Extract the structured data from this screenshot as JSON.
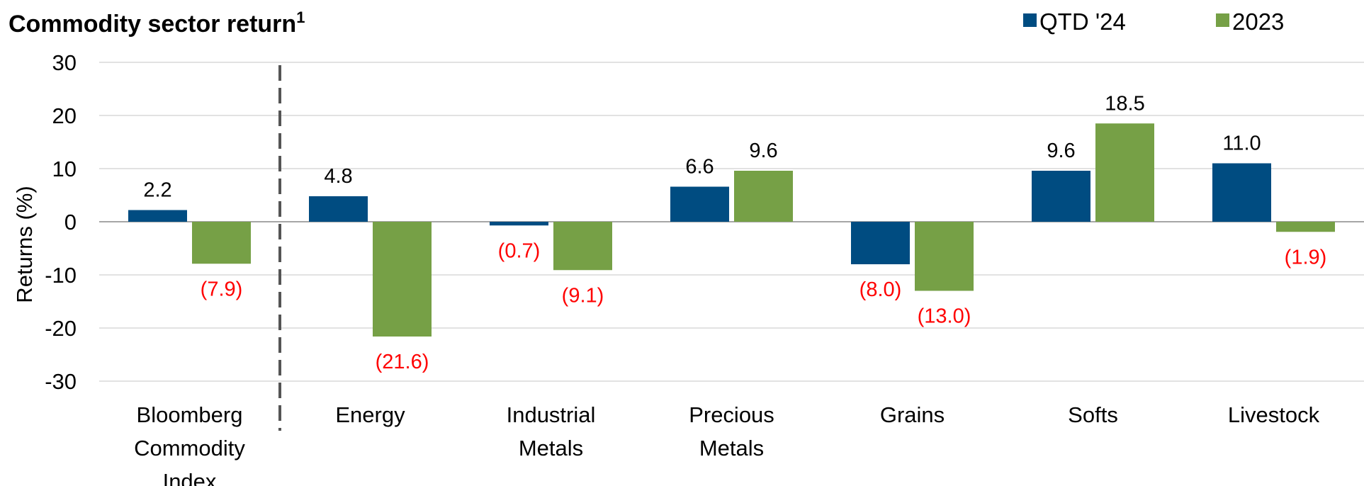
{
  "chart_data": {
    "type": "bar",
    "title": "Commodity sector return",
    "title_superscript": "1",
    "ylabel": "Returns (%)",
    "ylim": [
      -30,
      30
    ],
    "yticks": [
      30,
      20,
      10,
      0,
      -10,
      -20,
      -30
    ],
    "grid": true,
    "legend_position": "top-right",
    "categories": [
      [
        "Bloomberg",
        "Commodity",
        "Index"
      ],
      [
        "Energy"
      ],
      [
        "Industrial",
        "Metals"
      ],
      [
        "Precious",
        "Metals"
      ],
      [
        "Grains"
      ],
      [
        "Softs"
      ],
      [
        "Livestock"
      ]
    ],
    "separator_after_category": 0,
    "series": [
      {
        "name": "QTD '24",
        "color": "#004C81",
        "values": [
          2.2,
          4.8,
          -0.7,
          6.6,
          -8.0,
          9.6,
          11.0
        ],
        "labels": [
          "2.2",
          "4.8",
          "(0.7)",
          "6.6",
          "(8.0)",
          "9.6",
          "11.0"
        ]
      },
      {
        "name": "2023",
        "color": "#76A046",
        "values": [
          -7.9,
          -21.6,
          -9.1,
          9.6,
          -13.0,
          18.5,
          -1.9
        ],
        "labels": [
          "(7.9)",
          "(21.6)",
          "(9.1)",
          "9.6",
          "(13.0)",
          "18.5",
          "(1.9)"
        ]
      }
    ],
    "positive_label_color": "#000000",
    "negative_label_color": "#FF0000"
  }
}
